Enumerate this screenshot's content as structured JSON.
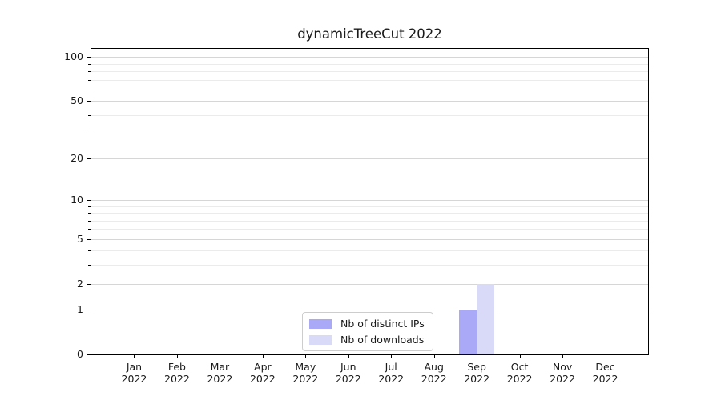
{
  "chart_data": {
    "type": "bar",
    "title": "dynamicTreeCut 2022",
    "categories": [
      "Jan 2022",
      "Feb 2022",
      "Mar 2022",
      "Apr 2022",
      "May 2022",
      "Jun 2022",
      "Jul 2022",
      "Aug 2022",
      "Sep 2022",
      "Oct 2022",
      "Nov 2022",
      "Dec 2022"
    ],
    "series": [
      {
        "name": "Nb of distinct IPs",
        "color": "#a9a9f7",
        "values": [
          0,
          0,
          0,
          0,
          0,
          0,
          0,
          0,
          1,
          0,
          0,
          0
        ]
      },
      {
        "name": "Nb of downloads",
        "color": "#d9d9f8",
        "values": [
          0,
          0,
          0,
          0,
          0,
          0,
          0,
          0,
          2,
          0,
          0,
          0
        ]
      }
    ],
    "xlabel": "",
    "ylabel": "",
    "y_scale": "log1p",
    "ylim": [
      0,
      114
    ],
    "y_major_ticks": [
      0,
      1,
      2,
      5,
      10,
      20,
      50,
      100
    ],
    "y_minor_gridlines": [
      3,
      4,
      6,
      7,
      8,
      9,
      30,
      40,
      60,
      70,
      80,
      90
    ],
    "grid": "horizontal-only",
    "legend_position": "lower center"
  },
  "colors": {
    "background": "#ffffff",
    "spine": "#000000",
    "major_grid": "#d6d6d6",
    "minor_grid": "#ebebeb",
    "text": "#1a1a1a"
  }
}
